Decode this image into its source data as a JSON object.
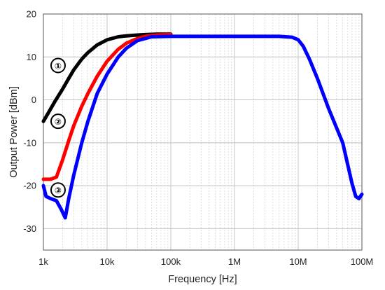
{
  "chart_data": {
    "type": "line",
    "xlabel": "Frequency [Hz]",
    "ylabel": "Output Power [dBm]",
    "x_scale": "log",
    "xlim": [
      1000,
      100000000
    ],
    "ylim": [
      -35,
      20
    ],
    "x_ticks": [
      {
        "value": 1000,
        "label": "1k"
      },
      {
        "value": 10000,
        "label": "10k"
      },
      {
        "value": 100000,
        "label": "100k"
      },
      {
        "value": 1000000,
        "label": "1M"
      },
      {
        "value": 10000000,
        "label": "10M"
      },
      {
        "value": 100000000,
        "label": "100M"
      }
    ],
    "y_ticks": [
      {
        "value": 20,
        "label": "20"
      },
      {
        "value": 10,
        "label": "10"
      },
      {
        "value": 0,
        "label": "0"
      },
      {
        "value": -10,
        "label": "-10"
      },
      {
        "value": -20,
        "label": "-20"
      },
      {
        "value": -30,
        "label": "-30"
      }
    ],
    "grid": true,
    "series": [
      {
        "color": "#000000",
        "x": [
          1000,
          1200,
          1500,
          2000,
          2500,
          3000,
          4000,
          5000,
          7000,
          10000,
          15000,
          20000,
          30000,
          40000,
          60000,
          100000
        ],
        "y": [
          -5,
          -3,
          -0.5,
          2.5,
          5,
          7,
          9.5,
          11,
          12.8,
          14,
          14.7,
          14.9,
          15.1,
          15.2,
          15.3,
          15.3
        ]
      },
      {
        "color": "#ff0000",
        "x": [
          1000,
          1300,
          1600,
          2000,
          2500,
          3000,
          4000,
          5000,
          7000,
          10000,
          15000,
          20000,
          30000,
          40000,
          60000,
          100000
        ],
        "y": [
          -18.5,
          -18.5,
          -18,
          -14,
          -9.5,
          -6,
          -1.5,
          1.5,
          5.5,
          9,
          11.8,
          13.2,
          14.3,
          14.8,
          15.1,
          15.2
        ]
      },
      {
        "color": "#0000ff",
        "x": [
          1000,
          1100,
          1300,
          1600,
          1900,
          2200,
          2500,
          3000,
          4000,
          5000,
          7000,
          10000,
          15000,
          20000,
          30000,
          50000,
          100000,
          1000000,
          5000000,
          8000000,
          10000000,
          12000000,
          15000000,
          20000000,
          30000000,
          50000000,
          70000000,
          80000000,
          90000000,
          100000000
        ],
        "y": [
          -20,
          -22.5,
          -23,
          -23.5,
          -25.5,
          -27.5,
          -23,
          -17.5,
          -10,
          -5,
          1.5,
          6,
          10,
          12,
          13.8,
          14.7,
          14.8,
          14.8,
          14.8,
          14.6,
          14,
          12.5,
          9.5,
          5,
          -2,
          -10,
          -19.5,
          -22.5,
          -23,
          -22
        ]
      }
    ],
    "annotations": [
      {
        "label": "①",
        "x": 1700,
        "y": 8
      },
      {
        "label": "②",
        "x": 1700,
        "y": -5
      },
      {
        "label": "③",
        "x": 1700,
        "y": -21
      }
    ]
  }
}
